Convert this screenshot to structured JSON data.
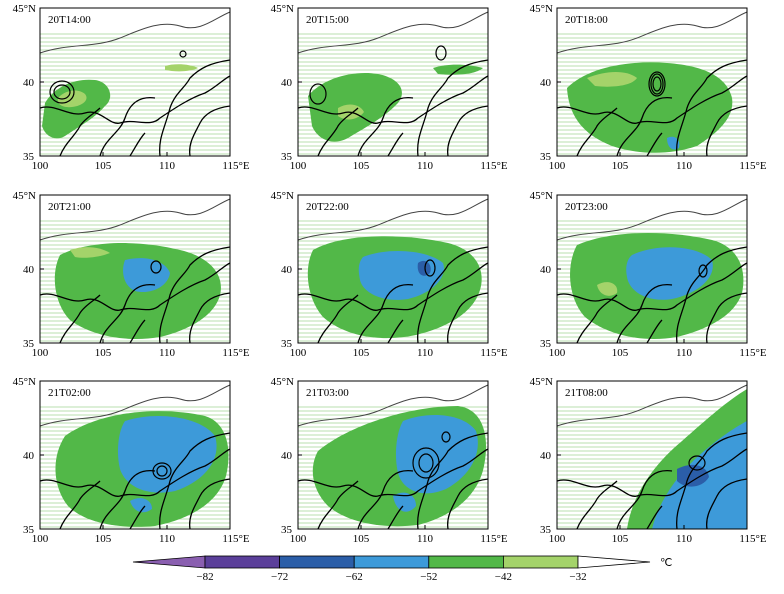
{
  "panels": [
    {
      "label": "20T14:00",
      "y_top": "45°N",
      "y_mid": "40",
      "y_bot": "35",
      "x_ticks": [
        "100",
        "105",
        "110",
        "115°E"
      ]
    },
    {
      "label": "20T15:00",
      "y_top": "45°N",
      "y_mid": "40",
      "y_bot": "35",
      "x_ticks": [
        "100",
        "105",
        "110",
        "115°E"
      ]
    },
    {
      "label": "20T18:00",
      "y_top": "45°N",
      "y_mid": "40",
      "y_bot": "35",
      "x_ticks": [
        "100",
        "105",
        "110",
        "115°E"
      ]
    },
    {
      "label": "20T21:00",
      "y_top": "45°N",
      "y_mid": "40",
      "y_bot": "35",
      "x_ticks": [
        "100",
        "105",
        "110",
        "115°E"
      ]
    },
    {
      "label": "20T22:00",
      "y_top": "45°N",
      "y_mid": "40",
      "y_bot": "35",
      "x_ticks": [
        "100",
        "105",
        "110",
        "115°E"
      ]
    },
    {
      "label": "20T23:00",
      "y_top": "45°N",
      "y_mid": "40",
      "y_bot": "35",
      "x_ticks": [
        "100",
        "105",
        "110",
        "115°E"
      ]
    },
    {
      "label": "21T02:00",
      "y_top": "45°N",
      "y_mid": "40",
      "y_bot": "35",
      "x_ticks": [
        "100",
        "105",
        "110",
        "115°E"
      ]
    },
    {
      "label": "21T03:00",
      "y_top": "45°N",
      "y_mid": "40",
      "y_bot": "35",
      "x_ticks": [
        "100",
        "105",
        "110",
        "115°E"
      ]
    },
    {
      "label": "21T08:00",
      "y_top": "45°N",
      "y_mid": "40",
      "y_bot": "35",
      "x_ticks": [
        "100",
        "105",
        "110",
        "115°E"
      ]
    }
  ],
  "colorbar": {
    "ticks": [
      "−82",
      "−72",
      "−62",
      "−52",
      "−42",
      "−32"
    ],
    "unit": "℃",
    "colors": [
      "#8a5fb0",
      "#5b3f9a",
      "#2b5ea8",
      "#3d9ad9",
      "#52b848",
      "#a4d36a"
    ]
  }
}
